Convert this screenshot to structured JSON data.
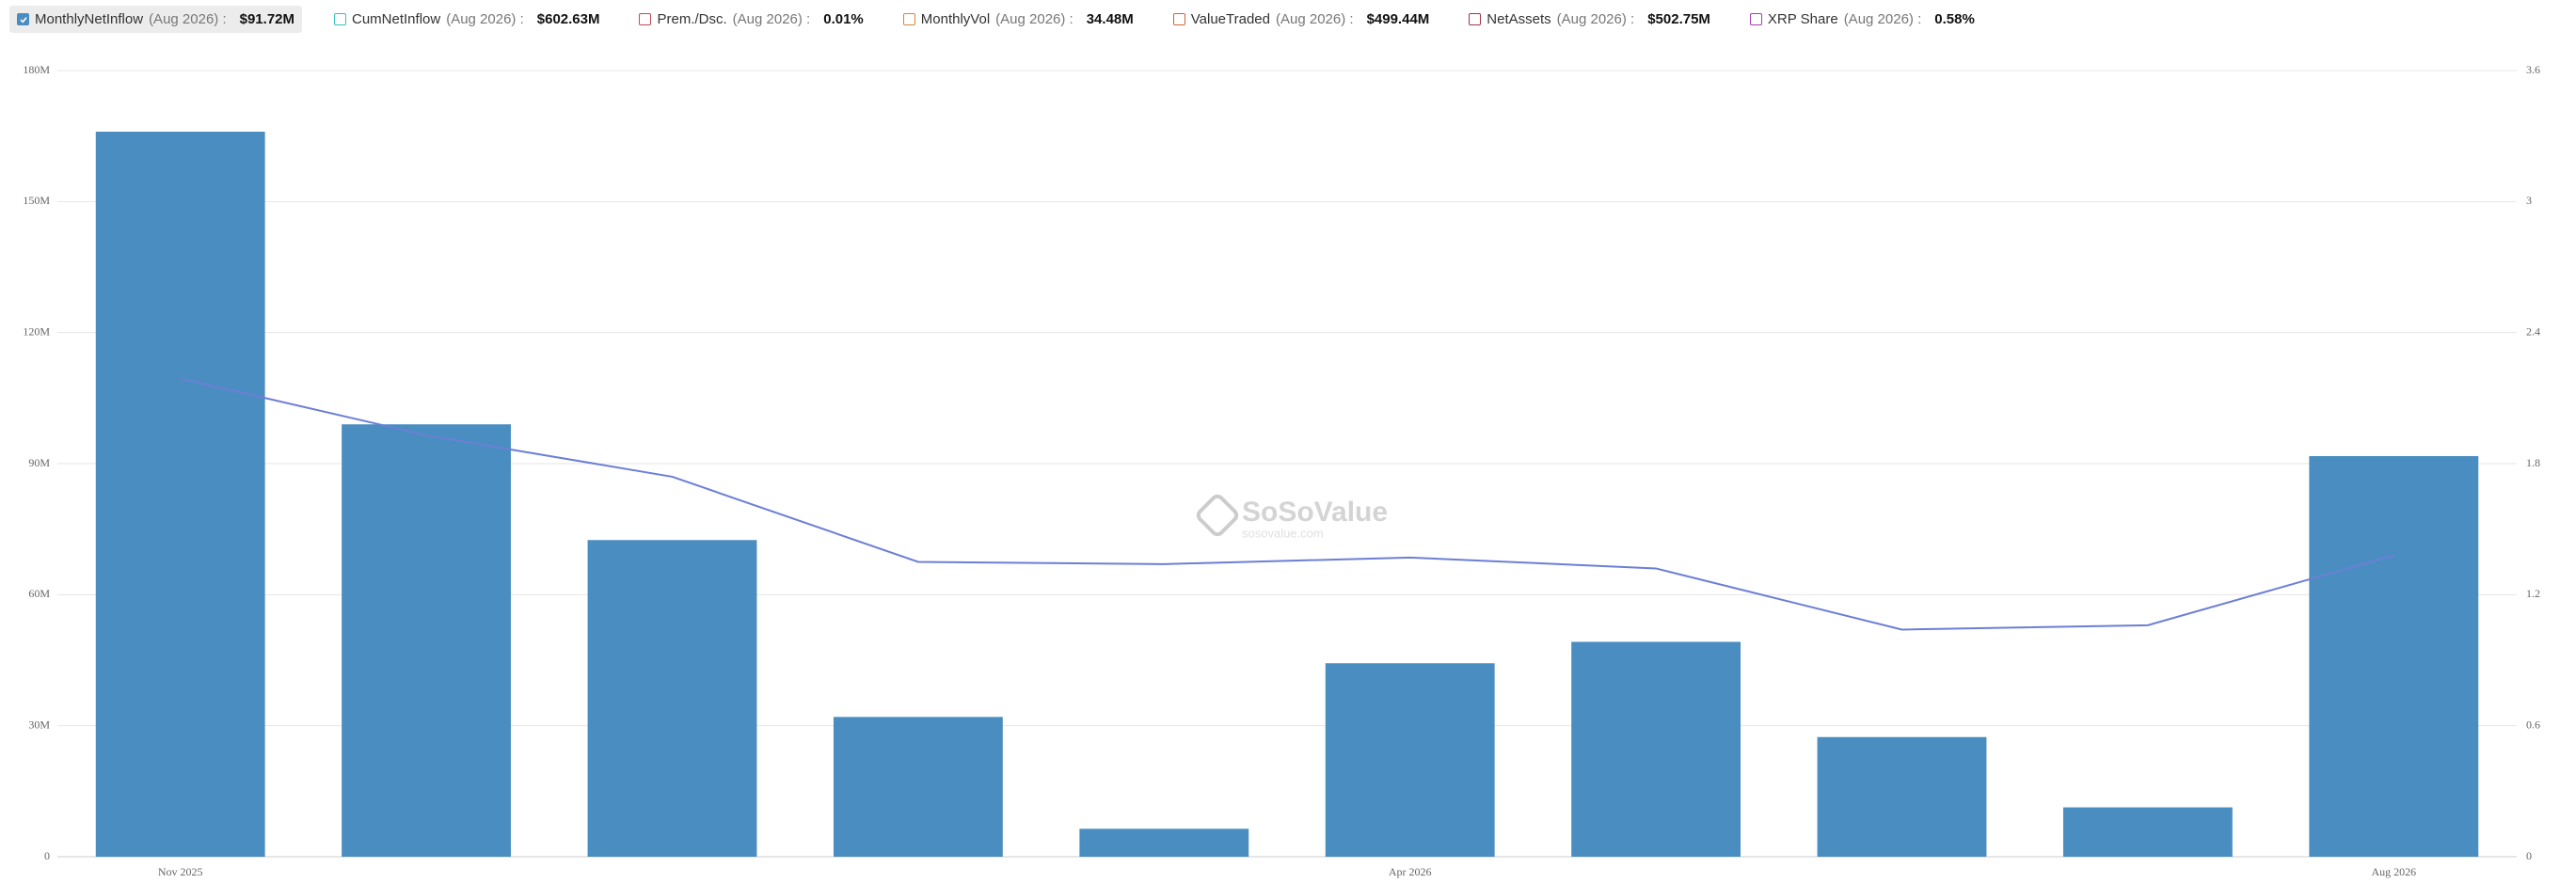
{
  "chart_data": {
    "type": "bar",
    "categories": [
      "Nov 2025",
      null,
      null,
      null,
      null,
      "Apr 2026",
      null,
      null,
      null,
      "Aug 2026"
    ],
    "series": [
      {
        "name": "MonthlyNetInflow",
        "color": "#4a8dc0",
        "values": [
          166,
          99,
          72.5,
          32,
          6.4,
          44.3,
          49.2,
          27.4,
          11.3,
          91.72
        ]
      },
      {
        "type": "line",
        "axis": "y2",
        "color": "#6c7fd6",
        "values": [
          2.19,
          1.93,
          1.74,
          1.35,
          1.34,
          1.37,
          1.32,
          1.04,
          1.06,
          1.38
        ]
      }
    ],
    "ylim": [
      0,
      180
    ],
    "yticks": [
      0,
      {
        "value": 30,
        "label": "30M"
      },
      {
        "value": 60,
        "label": "60M"
      },
      {
        "value": 90,
        "label": "90M"
      },
      {
        "value": 120,
        "label": "120M"
      },
      {
        "value": 150,
        "label": "150M"
      },
      {
        "value": 180,
        "label": "180M"
      }
    ],
    "y2lim": [
      0,
      3.6
    ],
    "y2ticks": [
      0,
      0.6,
      1.2,
      1.8,
      2.4,
      3,
      3.6
    ],
    "grid": true,
    "watermark": "SoSoValue",
    "watermark_sub": "sosovalue.com"
  },
  "legend_items": [
    {
      "period": "(Aug 2026) :",
      "value": "$91.72M",
      "color": "#4a8dc0",
      "checked": true
    },
    {
      "name": "CumNetInflow",
      "period": "(Aug 2026) :",
      "value": "$602.63M",
      "color": "#3bbfbf",
      "checked": false
    },
    {
      "name": "Prem./Dsc.",
      "period": "(Aug 2026) :",
      "value": "0.01%",
      "color": "#c04a5a",
      "checked": false
    },
    {
      "name": "MonthlyVol",
      "period": "(Aug 2026) :",
      "value": "34.48M",
      "color": "#d08a3a",
      "checked": false
    },
    {
      "name": "ValueTraded",
      "period": "(Aug 2026) :",
      "value": "$499.44M",
      "color": "#d0643a",
      "checked": false
    },
    {
      "name": "NetAssets",
      "period": "(Aug 2026) :",
      "value": "$502.75M",
      "color": "#a8324a",
      "checked": false
    },
    {
      "name": "XRP Share",
      "period": "(Aug 2026) :",
      "value": "0.58%",
      "color": "#a040b0",
      "checked": false
    }
  ]
}
